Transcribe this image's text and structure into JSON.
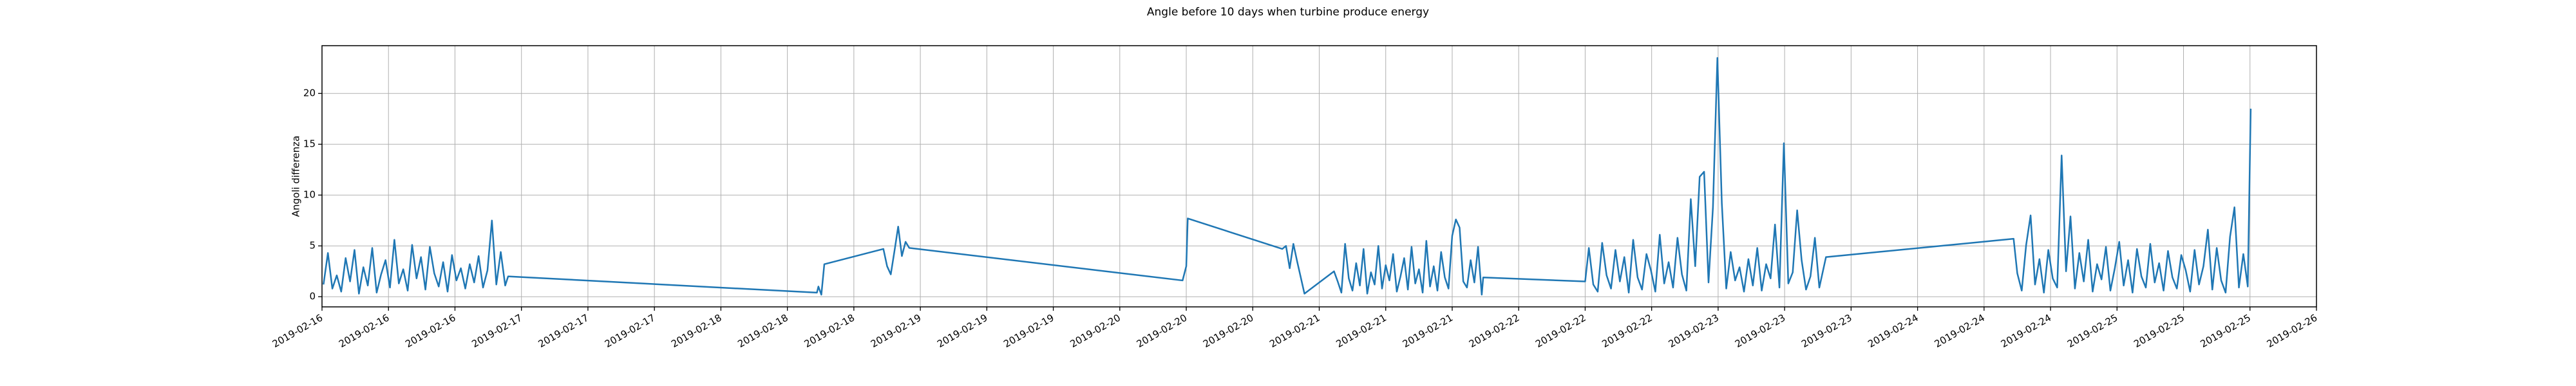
{
  "chart_data": {
    "type": "line",
    "title": "Angle before 10 days when turbine produce energy",
    "y_label": "Angoli differenza",
    "color": "#1f77b4",
    "grid": true,
    "xlim": [
      0,
      27
    ],
    "ylim": [
      -1.0,
      24.7
    ],
    "yticks": [
      0,
      5,
      10,
      15,
      20
    ],
    "xticks": [
      {
        "value": 0,
        "label": "2019-02-16"
      },
      {
        "value": 0.9,
        "label": "2019-02-16"
      },
      {
        "value": 1.8,
        "label": "2019-02-16"
      },
      {
        "value": 2.7,
        "label": "2019-02-17"
      },
      {
        "value": 3.6,
        "label": "2019-02-17"
      },
      {
        "value": 4.5,
        "label": "2019-02-17"
      },
      {
        "value": 5.4,
        "label": "2019-02-18"
      },
      {
        "value": 6.3,
        "label": "2019-02-18"
      },
      {
        "value": 7.2,
        "label": "2019-02-18"
      },
      {
        "value": 8.1,
        "label": "2019-02-19"
      },
      {
        "value": 9,
        "label": "2019-02-19"
      },
      {
        "value": 9.9,
        "label": "2019-02-19"
      },
      {
        "value": 10.8,
        "label": "2019-02-20"
      },
      {
        "value": 11.7,
        "label": "2019-02-20"
      },
      {
        "value": 12.6,
        "label": "2019-02-20"
      },
      {
        "value": 13.5,
        "label": "2019-02-21"
      },
      {
        "value": 14.4,
        "label": "2019-02-21"
      },
      {
        "value": 15.3,
        "label": "2019-02-21"
      },
      {
        "value": 16.2,
        "label": "2019-02-22"
      },
      {
        "value": 17.1,
        "label": "2019-02-22"
      },
      {
        "value": 18,
        "label": "2019-02-22"
      },
      {
        "value": 18.9,
        "label": "2019-02-23"
      },
      {
        "value": 19.8,
        "label": "2019-02-23"
      },
      {
        "value": 20.7,
        "label": "2019-02-23"
      },
      {
        "value": 21.6,
        "label": "2019-02-24"
      },
      {
        "value": 22.5,
        "label": "2019-02-24"
      },
      {
        "value": 23.4,
        "label": "2019-02-24"
      },
      {
        "value": 24.3,
        "label": "2019-02-25"
      },
      {
        "value": 25.2,
        "label": "2019-02-25"
      },
      {
        "value": 26.1,
        "label": "2019-02-25"
      },
      {
        "value": 27,
        "label": "2019-02-26"
      }
    ],
    "x": [
      0.02,
      0.08,
      0.14,
      0.2,
      0.26,
      0.32,
      0.38,
      0.44,
      0.5,
      0.56,
      0.62,
      0.68,
      0.74,
      0.8,
      0.86,
      0.92,
      0.98,
      1.04,
      1.1,
      1.16,
      1.22,
      1.28,
      1.34,
      1.4,
      1.46,
      1.52,
      1.58,
      1.64,
      1.7,
      1.76,
      1.82,
      1.88,
      1.94,
      2.0,
      2.06,
      2.12,
      2.18,
      2.24,
      2.3,
      2.36,
      2.42,
      2.48,
      2.52,
      6.7,
      6.72,
      6.76,
      6.8,
      7.6,
      7.65,
      7.7,
      7.75,
      7.8,
      7.85,
      7.9,
      7.95,
      11.65,
      11.7,
      11.72,
      13.0,
      13.05,
      13.1,
      13.15,
      13.2,
      13.3,
      13.7,
      13.75,
      13.8,
      13.85,
      13.9,
      13.95,
      14.0,
      14.05,
      14.1,
      14.15,
      14.2,
      14.25,
      14.3,
      14.35,
      14.4,
      14.45,
      14.5,
      14.55,
      14.6,
      14.65,
      14.7,
      14.75,
      14.8,
      14.85,
      14.9,
      14.95,
      15.0,
      15.05,
      15.1,
      15.15,
      15.2,
      15.25,
      15.3,
      15.35,
      15.4,
      15.45,
      15.5,
      15.55,
      15.6,
      15.65,
      15.7,
      15.72,
      17.1,
      17.15,
      17.21,
      17.27,
      17.33,
      17.39,
      17.45,
      17.51,
      17.57,
      17.63,
      17.69,
      17.75,
      17.81,
      17.87,
      17.93,
      17.99,
      18.05,
      18.11,
      18.17,
      18.23,
      18.29,
      18.35,
      18.41,
      18.47,
      18.53,
      18.59,
      18.65,
      18.71,
      18.77,
      18.83,
      18.89,
      18.95,
      19.01,
      19.07,
      19.13,
      19.19,
      19.25,
      19.31,
      19.37,
      19.43,
      19.49,
      19.55,
      19.61,
      19.67,
      19.73,
      19.79,
      19.85,
      19.91,
      19.97,
      20.03,
      20.09,
      20.15,
      20.21,
      20.27,
      20.36,
      22.9,
      22.95,
      23.01,
      23.07,
      23.13,
      23.19,
      23.25,
      23.31,
      23.37,
      23.43,
      23.49,
      23.55,
      23.61,
      23.67,
      23.73,
      23.79,
      23.85,
      23.91,
      23.97,
      24.03,
      24.09,
      24.15,
      24.21,
      24.27,
      24.33,
      24.39,
      24.45,
      24.51,
      24.57,
      24.63,
      24.69,
      24.75,
      24.81,
      24.87,
      24.93,
      24.99,
      25.05,
      25.11,
      25.17,
      25.23,
      25.29,
      25.35,
      25.41,
      25.47,
      25.53,
      25.59,
      25.65,
      25.71,
      25.77,
      25.83,
      25.89,
      25.95,
      26.01,
      26.07,
      26.11
    ],
    "values": [
      1.2,
      4.3,
      0.8,
      2.1,
      0.5,
      3.8,
      1.5,
      4.6,
      0.3,
      2.9,
      1.1,
      4.8,
      0.4,
      2.2,
      3.6,
      0.9,
      5.6,
      1.3,
      2.7,
      0.6,
      5.1,
      1.8,
      3.9,
      0.7,
      4.9,
      2.3,
      1.0,
      3.4,
      0.5,
      4.1,
      1.6,
      2.8,
      0.8,
      3.2,
      1.4,
      4.0,
      0.9,
      2.6,
      7.5,
      1.2,
      4.4,
      1.1,
      2.0,
      0.4,
      1.0,
      0.2,
      3.2,
      4.7,
      3.0,
      2.2,
      4.5,
      6.9,
      4.0,
      5.4,
      4.8,
      1.6,
      3.0,
      7.7,
      4.7,
      5.0,
      2.8,
      5.2,
      3.5,
      0.3,
      2.5,
      1.5,
      0.4,
      5.2,
      1.8,
      0.6,
      3.3,
      1.1,
      4.7,
      0.3,
      2.4,
      1.2,
      5.0,
      0.8,
      3.1,
      1.6,
      4.2,
      0.5,
      2.0,
      3.8,
      0.7,
      4.9,
      1.3,
      2.7,
      0.4,
      5.5,
      1.0,
      3.0,
      0.6,
      4.4,
      1.9,
      0.8,
      6.0,
      7.6,
      6.8,
      1.5,
      0.9,
      3.6,
      1.4,
      4.9,
      0.2,
      1.9,
      1.5,
      4.8,
      1.2,
      0.5,
      5.3,
      2.1,
      0.8,
      4.6,
      1.5,
      3.9,
      0.4,
      5.6,
      1.9,
      0.7,
      4.2,
      2.6,
      0.5,
      6.1,
      1.3,
      3.4,
      0.9,
      5.8,
      2.2,
      0.6,
      9.6,
      3.0,
      11.8,
      12.3,
      1.4,
      8.8,
      23.5,
      9.2,
      0.8,
      4.4,
      1.6,
      2.9,
      0.5,
      3.7,
      1.1,
      4.8,
      0.6,
      3.2,
      1.8,
      7.1,
      0.9,
      15.1,
      1.3,
      2.4,
      8.5,
      3.6,
      0.7,
      2.0,
      5.8,
      0.9,
      3.9,
      5.7,
      2.3,
      0.6,
      5.1,
      8.0,
      1.2,
      3.7,
      0.4,
      4.6,
      1.8,
      0.9,
      13.9,
      2.5,
      7.9,
      0.8,
      4.3,
      1.5,
      5.6,
      0.5,
      3.2,
      1.7,
      4.9,
      0.6,
      2.8,
      5.4,
      1.1,
      3.6,
      0.4,
      4.7,
      2.0,
      0.9,
      5.2,
      1.4,
      3.3,
      0.6,
      4.5,
      1.9,
      0.8,
      4.1,
      2.6,
      0.5,
      4.6,
      1.2,
      3.0,
      6.6,
      0.7,
      4.8,
      1.6,
      0.4,
      5.9,
      8.8,
      0.9,
      4.2,
      1.0,
      18.5
    ]
  }
}
